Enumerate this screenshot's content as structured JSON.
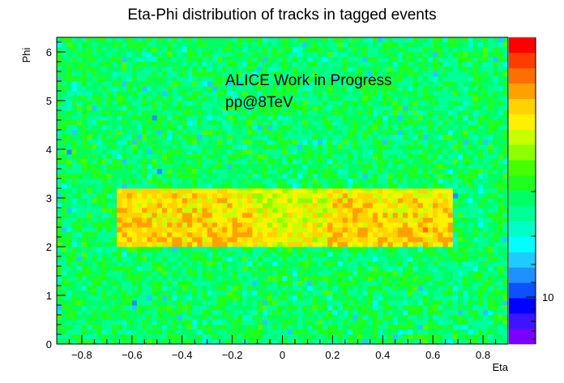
{
  "chart_data": {
    "type": "heatmap",
    "title": "Eta-Phi distribution of tracks in tagged events",
    "xlabel": "Eta",
    "ylabel": "Phi",
    "xlim": [
      -0.9,
      0.9
    ],
    "ylim": [
      0,
      6.3
    ],
    "x_ticks": [
      "−0.8",
      "−0.6",
      "−0.4",
      "−0.2",
      "0",
      "0.2",
      "0.4",
      "0.6",
      "0.8"
    ],
    "x_tick_values": [
      -0.8,
      -0.6,
      -0.4,
      -0.2,
      0,
      0.2,
      0.4,
      0.6,
      0.8
    ],
    "y_ticks": [
      "0",
      "1",
      "2",
      "3",
      "4",
      "5",
      "6"
    ],
    "y_tick_values": [
      0,
      1,
      2,
      3,
      4,
      5,
      6
    ],
    "bins": {
      "x": 90,
      "y": 63
    },
    "colorbar": {
      "scale": "log",
      "tick_labels": [
        "10"
      ],
      "palette": [
        "#7b00ff",
        "#3c14ff",
        "#0000ff",
        "#0c50ff",
        "#1e90ff",
        "#1ecbff",
        "#00ffff",
        "#00ffc8",
        "#00ff96",
        "#00ff64",
        "#1eff1e",
        "#46ff00",
        "#8cff00",
        "#c8ff00",
        "#fff000",
        "#ffd200",
        "#ffa000",
        "#ff6e00",
        "#ff3c00",
        "#ff0000"
      ]
    },
    "hotspot": {
      "eta_range": [
        -0.67,
        0.68
      ],
      "phi_range": [
        2.0,
        3.2
      ],
      "peak_phi": 2.3
    }
  },
  "annotations": {
    "line1": "ALICE Work in Progress",
    "line2": "pp@8TeV"
  }
}
